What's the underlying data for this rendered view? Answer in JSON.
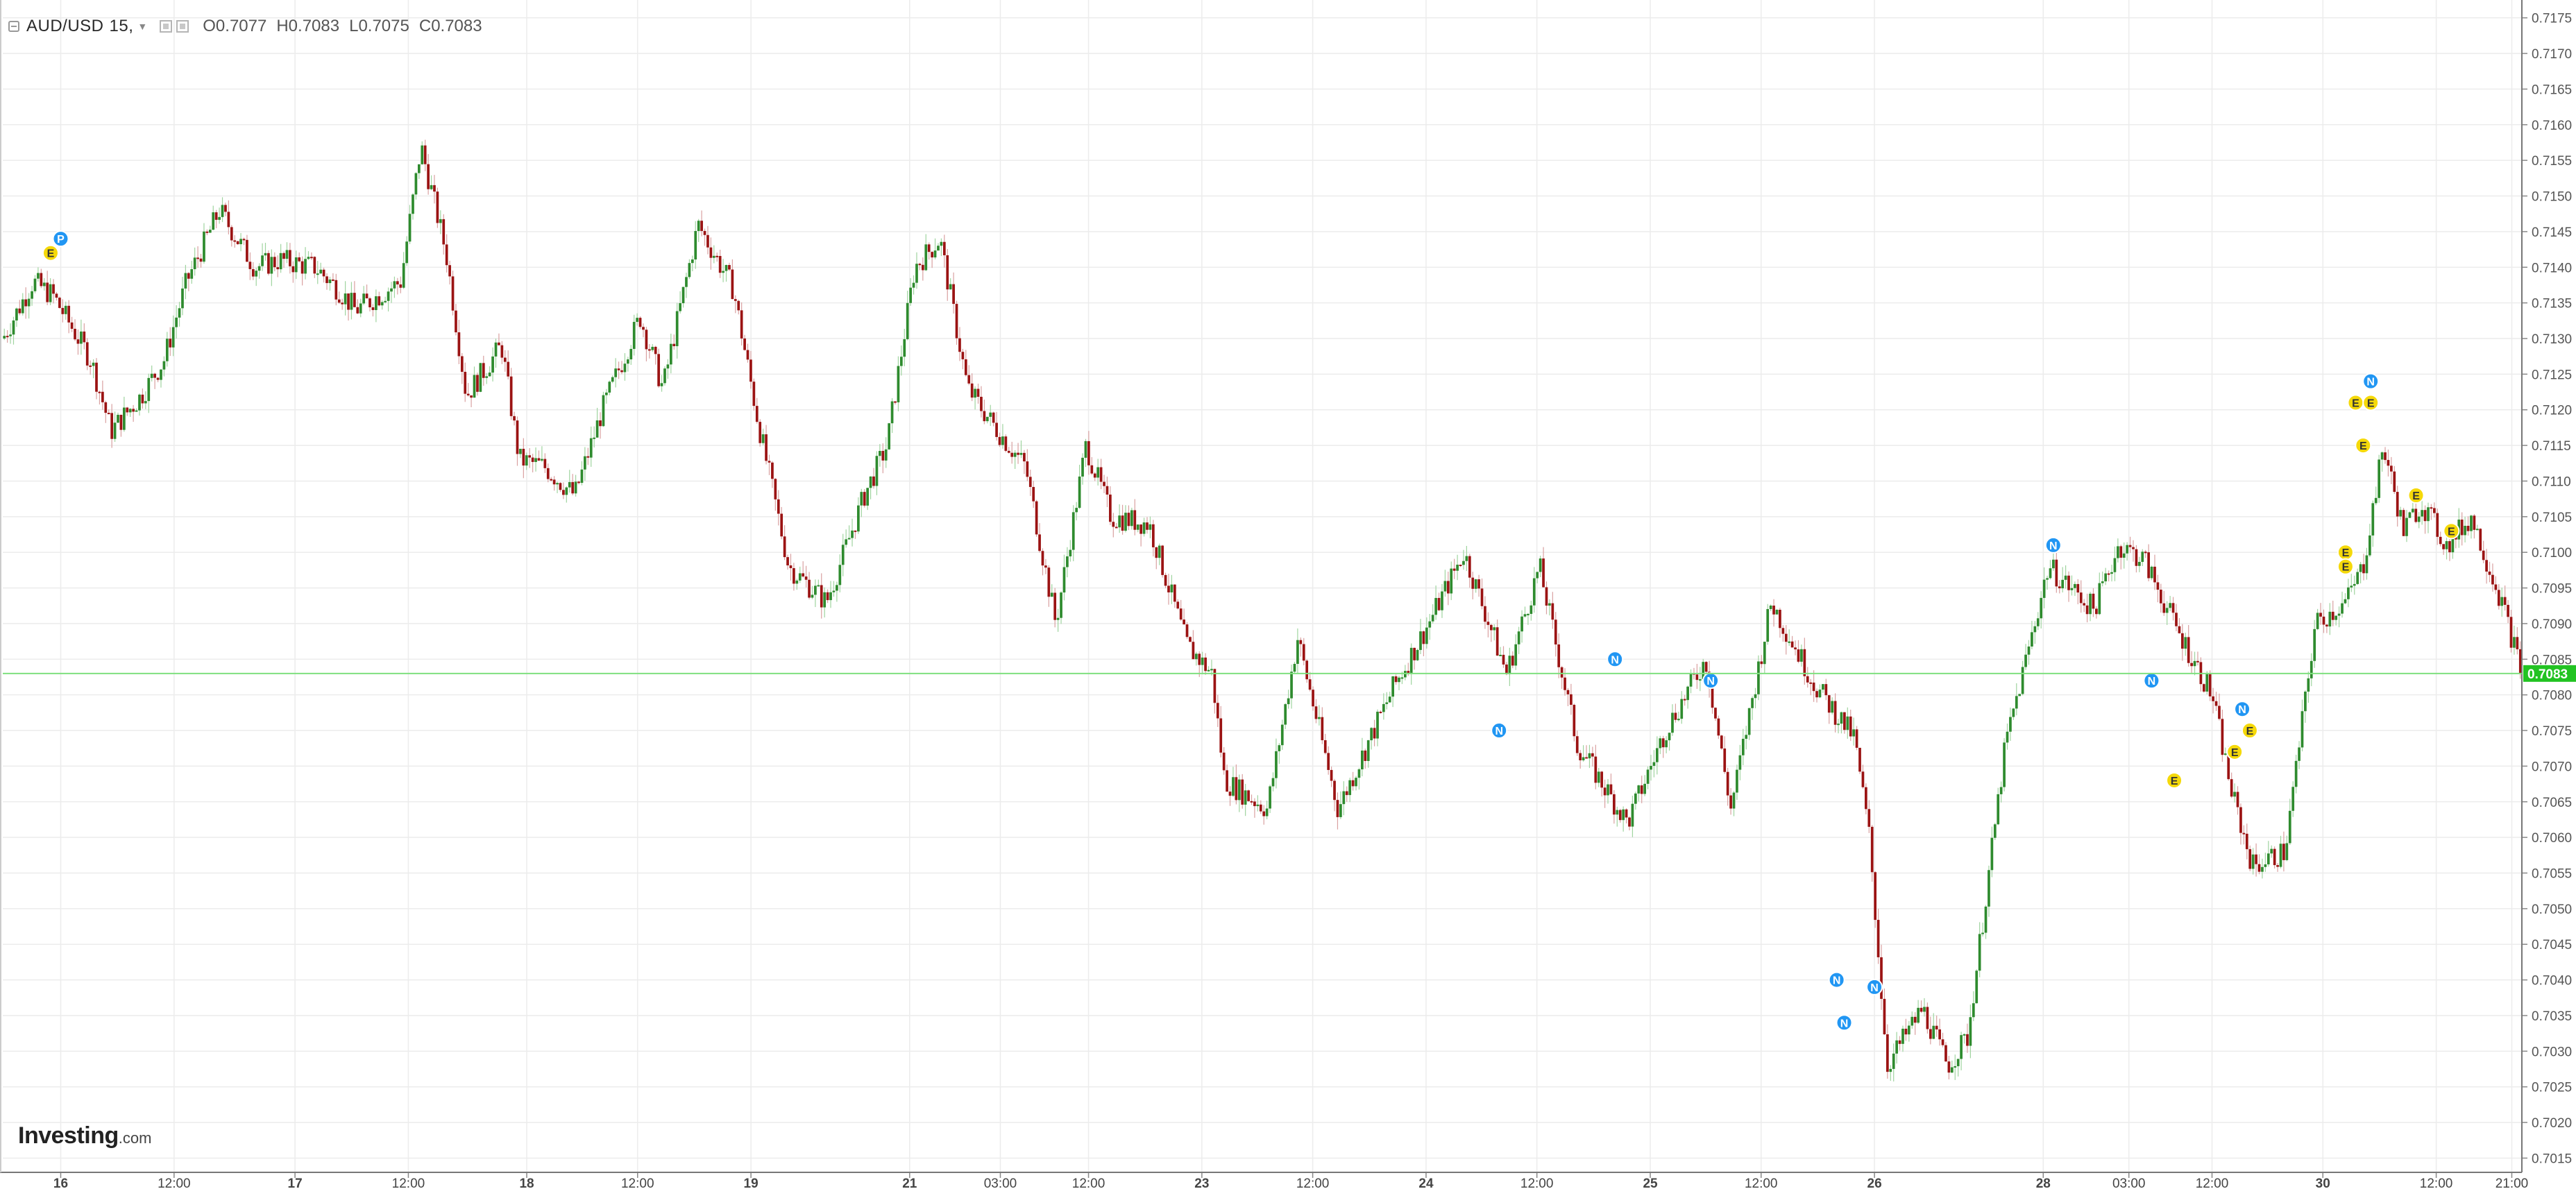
{
  "header": {
    "symbol": "AUD/USD",
    "interval": "15,",
    "open_label": "O",
    "open_value": "0.7077",
    "high_label": "H",
    "high_value": "0.7083",
    "low_label": "L",
    "low_value": "0.7075",
    "close_label": "C",
    "close_value": "0.7083"
  },
  "logo": {
    "main": "Investing",
    "suffix": ".com"
  },
  "colors": {
    "up": "#2e8b2e",
    "down": "#9b1313",
    "grid": "#ececec",
    "last_price_bg": "#22c322",
    "last_price_line": "#7fe07f",
    "news_marker": "#2196f3",
    "event_marker": "#f5d90a"
  },
  "chart_data": {
    "type": "candlestick",
    "series_name": "AUD/USD, 15",
    "ylim": [
      0.7013,
      0.71775
    ],
    "y_ticks": [
      "0.7175",
      "0.7170",
      "0.7165",
      "0.7160",
      "0.7155",
      "0.7150",
      "0.7145",
      "0.7140",
      "0.7135",
      "0.7130",
      "0.7125",
      "0.7120",
      "0.7115",
      "0.7110",
      "0.7105",
      "0.7100",
      "0.7095",
      "0.7090",
      "0.7085",
      "0.7080",
      "0.7075",
      "0.7070",
      "0.7065",
      "0.7060",
      "0.7055",
      "0.7050",
      "0.7045",
      "0.7040",
      "0.7035",
      "0.7030",
      "0.7025",
      "0.7020",
      "0.7015"
    ],
    "x_ticks": [
      {
        "label": "16",
        "pos": 0.023,
        "major": true
      },
      {
        "label": "12:00",
        "pos": 0.068,
        "major": false
      },
      {
        "label": "17",
        "pos": 0.116,
        "major": true
      },
      {
        "label": "12:00",
        "pos": 0.161,
        "major": false
      },
      {
        "label": "18",
        "pos": 0.208,
        "major": true
      },
      {
        "label": "12:00",
        "pos": 0.252,
        "major": false
      },
      {
        "label": "19",
        "pos": 0.297,
        "major": true
      },
      {
        "label": "21",
        "pos": 0.36,
        "major": true
      },
      {
        "label": "03:00",
        "pos": 0.396,
        "major": false
      },
      {
        "label": "12:00",
        "pos": 0.431,
        "major": false
      },
      {
        "label": "23",
        "pos": 0.476,
        "major": true
      },
      {
        "label": "12:00",
        "pos": 0.52,
        "major": false
      },
      {
        "label": "24",
        "pos": 0.565,
        "major": true
      },
      {
        "label": "12:00",
        "pos": 0.609,
        "major": false
      },
      {
        "label": "25",
        "pos": 0.654,
        "major": true
      },
      {
        "label": "12:00",
        "pos": 0.698,
        "major": false
      },
      {
        "label": "26",
        "pos": 0.743,
        "major": true
      },
      {
        "label": "28",
        "pos": 0.81,
        "major": true
      },
      {
        "label": "03:00",
        "pos": 0.844,
        "major": false
      },
      {
        "label": "12:00",
        "pos": 0.877,
        "major": false
      },
      {
        "label": "30",
        "pos": 0.921,
        "major": true
      },
      {
        "label": "12:00",
        "pos": 0.966,
        "major": false
      },
      {
        "label": "21:00",
        "pos": 0.996,
        "major": false
      }
    ],
    "last_price": 0.7083,
    "last_price_label": "0.7083",
    "path_pos": [
      0,
      0.012,
      0.02,
      0.035,
      0.043,
      0.055,
      0.064,
      0.068,
      0.073,
      0.086,
      0.1,
      0.11,
      0.124,
      0.133,
      0.14,
      0.158,
      0.166,
      0.176,
      0.184,
      0.198,
      0.205,
      0.215,
      0.227,
      0.238,
      0.253,
      0.262,
      0.276,
      0.29,
      0.3,
      0.312,
      0.327,
      0.342,
      0.351,
      0.362,
      0.372,
      0.383,
      0.393,
      0.406,
      0.418,
      0.43,
      0.44,
      0.455,
      0.47,
      0.48,
      0.485,
      0.502,
      0.514,
      0.53,
      0.552,
      0.566,
      0.58,
      0.597,
      0.61,
      0.625,
      0.645,
      0.66,
      0.676,
      0.686,
      0.702,
      0.72,
      0.735,
      0.741,
      0.748,
      0.762,
      0.772,
      0.78,
      0.795,
      0.812,
      0.83,
      0.84,
      0.85,
      0.862,
      0.877,
      0.885,
      0.893,
      0.906,
      0.918,
      0.93,
      0.937,
      0.945,
      0.953,
      0.96,
      0.97,
      0.98,
      0.992,
      1.0
    ],
    "path_val": [
      0.713,
      0.7138,
      0.7136,
      0.7127,
      0.7117,
      0.7122,
      0.7127,
      0.7132,
      0.7138,
      0.7148,
      0.714,
      0.7141,
      0.714,
      0.7137,
      0.7134,
      0.7138,
      0.7157,
      0.7142,
      0.7122,
      0.7129,
      0.7113,
      0.7112,
      0.7108,
      0.712,
      0.7133,
      0.7123,
      0.7146,
      0.7137,
      0.7118,
      0.7098,
      0.7093,
      0.7108,
      0.7115,
      0.714,
      0.7144,
      0.7123,
      0.7118,
      0.7112,
      0.709,
      0.7115,
      0.7105,
      0.7104,
      0.7087,
      0.7083,
      0.7068,
      0.7064,
      0.7088,
      0.7064,
      0.7081,
      0.709,
      0.71,
      0.7083,
      0.7098,
      0.7073,
      0.7062,
      0.7075,
      0.7085,
      0.7064,
      0.7093,
      0.7081,
      0.7074,
      0.706,
      0.7028,
      0.7036,
      0.7028,
      0.7032,
      0.7073,
      0.7098,
      0.7092,
      0.7101,
      0.7099,
      0.709,
      0.708,
      0.7066,
      0.7056,
      0.7058,
      0.709,
      0.7093,
      0.7098,
      0.7115,
      0.7103,
      0.7107,
      0.7101,
      0.7105,
      0.7093,
      0.7083
    ],
    "markers": [
      {
        "type": "E",
        "pos": 0.019,
        "value": 0.7142
      },
      {
        "type": "P",
        "pos": 0.023,
        "value": 0.7144
      },
      {
        "type": "N",
        "pos": 0.594,
        "value": 0.7075
      },
      {
        "type": "N",
        "pos": 0.64,
        "value": 0.7085
      },
      {
        "type": "N",
        "pos": 0.678,
        "value": 0.7082
      },
      {
        "type": "N",
        "pos": 0.728,
        "value": 0.704
      },
      {
        "type": "N",
        "pos": 0.731,
        "value": 0.7034
      },
      {
        "type": "N",
        "pos": 0.743,
        "value": 0.7039
      },
      {
        "type": "N",
        "pos": 0.814,
        "value": 0.7101
      },
      {
        "type": "N",
        "pos": 0.853,
        "value": 0.7082
      },
      {
        "type": "E",
        "pos": 0.862,
        "value": 0.7068
      },
      {
        "type": "E",
        "pos": 0.886,
        "value": 0.7072
      },
      {
        "type": "N",
        "pos": 0.889,
        "value": 0.7078
      },
      {
        "type": "E",
        "pos": 0.892,
        "value": 0.7075
      },
      {
        "type": "E",
        "pos": 0.93,
        "value": 0.71
      },
      {
        "type": "E",
        "pos": 0.93,
        "value": 0.7098
      },
      {
        "type": "E",
        "pos": 0.934,
        "value": 0.7121
      },
      {
        "type": "E",
        "pos": 0.94,
        "value": 0.7121
      },
      {
        "type": "N",
        "pos": 0.94,
        "value": 0.7124
      },
      {
        "type": "E",
        "pos": 0.937,
        "value": 0.7115
      },
      {
        "type": "E",
        "pos": 0.958,
        "value": 0.7108
      },
      {
        "type": "E",
        "pos": 0.972,
        "value": 0.7103
      }
    ]
  }
}
